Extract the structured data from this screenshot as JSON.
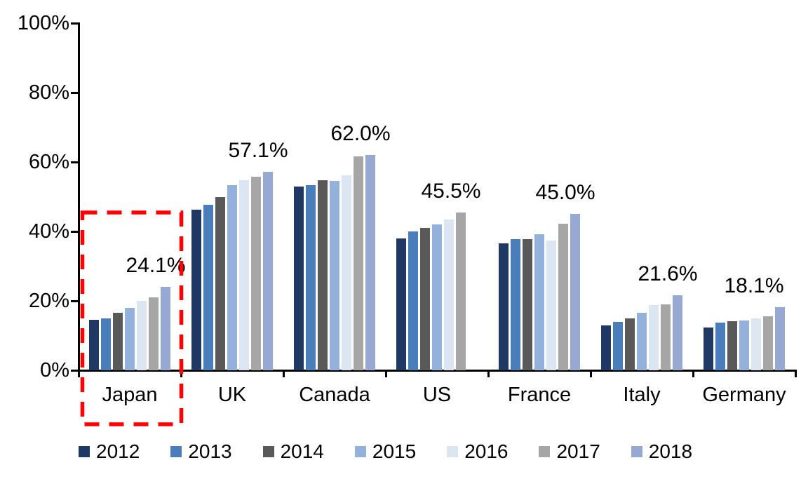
{
  "chart_data": {
    "type": "bar",
    "title": "",
    "categories": [
      "Japan",
      "UK",
      "Canada",
      "US",
      "France",
      "Italy",
      "Germany"
    ],
    "series": [
      {
        "name": "2012",
        "color": "#1F3864",
        "values": [
          14.5,
          46.2,
          53.0,
          38.0,
          36.5,
          13.0,
          12.3
        ]
      },
      {
        "name": "2013",
        "color": "#4A7EBB",
        "values": [
          15.0,
          47.7,
          53.3,
          40.0,
          37.8,
          14.0,
          13.7
        ]
      },
      {
        "name": "2014",
        "color": "#595959",
        "values": [
          16.5,
          49.9,
          54.8,
          41.0,
          37.7,
          15.0,
          14.1
        ]
      },
      {
        "name": "2015",
        "color": "#94B1DB",
        "values": [
          18.0,
          53.3,
          54.5,
          42.0,
          39.2,
          16.6,
          14.4
        ]
      },
      {
        "name": "2016",
        "color": "#DCE6F2",
        "values": [
          20.0,
          54.7,
          56.2,
          43.4,
          37.3,
          18.8,
          15.0
        ]
      },
      {
        "name": "2017",
        "color": "#A6A6A6",
        "values": [
          21.0,
          55.8,
          61.6,
          45.5,
          42.3,
          19.0,
          15.6
        ]
      },
      {
        "name": "2018",
        "color": "#97A9D3",
        "values": [
          24.1,
          57.1,
          62.0,
          null,
          45.0,
          21.6,
          18.1
        ]
      }
    ],
    "annotations": [
      {
        "category": "Japan",
        "text": "24.1%"
      },
      {
        "category": "UK",
        "text": "57.1%"
      },
      {
        "category": "Canada",
        "text": "62.0%"
      },
      {
        "category": "US",
        "text": "45.5%"
      },
      {
        "category": "France",
        "text": "45.0%"
      },
      {
        "category": "Italy",
        "text": "21.6%"
      },
      {
        "category": "Germany",
        "text": "18.1%"
      }
    ],
    "y_axis": {
      "min": 0,
      "max": 100,
      "tick_labels": [
        "0%",
        "20%",
        "40%",
        "60%",
        "80%",
        "100%"
      ]
    },
    "legend": [
      "2012",
      "2013",
      "2014",
      "2015",
      "2016",
      "2017",
      "2018"
    ],
    "legend_position": "bottom",
    "grid": false,
    "highlight_box": {
      "category": "Japan",
      "color": "#FF0000",
      "style": "dashed"
    },
    "axis_color": "#000000"
  }
}
